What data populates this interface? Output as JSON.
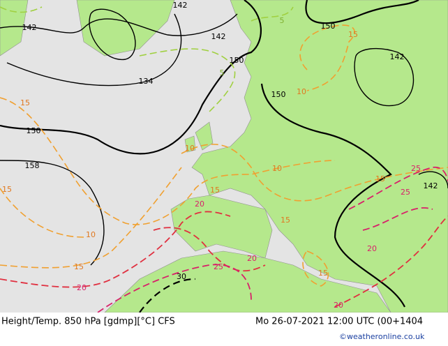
{
  "map": {
    "height_labels": [
      "142",
      "142",
      "142",
      "150",
      "134",
      "150",
      "158",
      "150",
      "150",
      "142",
      "142"
    ],
    "temperature_labels": [
      "15",
      "15",
      "10",
      "15",
      "20",
      "20",
      "15",
      "10",
      "5",
      "5",
      "15",
      "10",
      "10",
      "15",
      "25",
      "25",
      "15",
      "20",
      "25",
      "15",
      "20",
      "20",
      "30"
    ],
    "footer": {
      "left": "Height/Temp. 850 hPa [gdmp][°C] CFS",
      "right": "Mo 26-07-2021 12:00 UTC (00+1404",
      "credit": "©weatheronline.co.uk"
    }
  }
}
